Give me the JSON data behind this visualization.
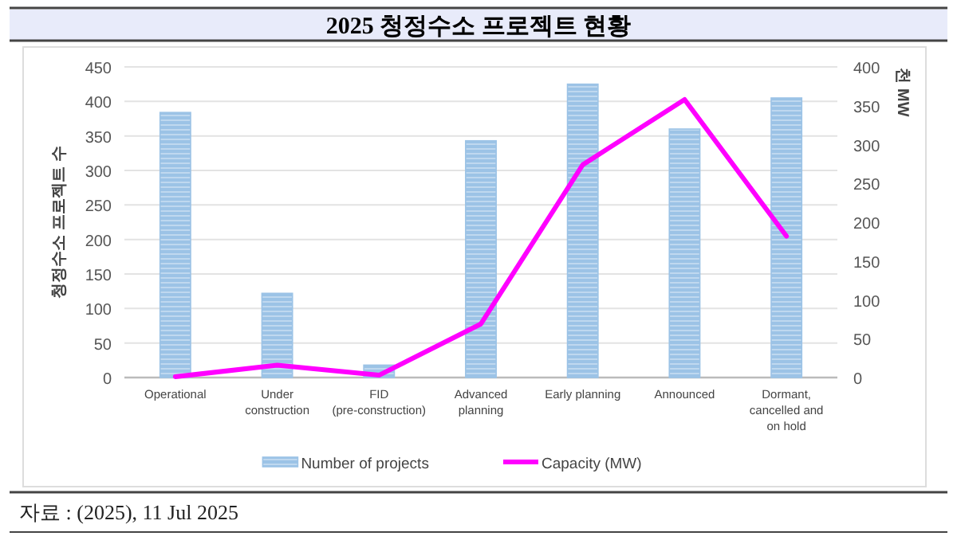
{
  "chart_data": {
    "type": "bar",
    "title": "2025 청정수소 프로젝트 현황",
    "categories": [
      "Operational",
      "Under construction",
      "FID (pre-construction)",
      "Advanced planning",
      "Early planning",
      "Announced",
      "Dormant, cancelled and on hold"
    ],
    "series": [
      {
        "name": "Number of projects",
        "color": "#9cc3e6",
        "values": [
          384,
          122,
          18,
          343,
          425,
          360,
          405
        ]
      },
      {
        "name": "Capacity (MW)",
        "type": "line",
        "axis": "y2",
        "color": "#ff00ff",
        "values": [
          1,
          16,
          3,
          69,
          274,
          358,
          182
        ]
      }
    ],
    "ylabel": "청정수소 프로젝트 수",
    "y2label": "천 MW",
    "ylim": [
      0,
      450
    ],
    "yticks": [
      0,
      50,
      100,
      150,
      200,
      250,
      300,
      350,
      400,
      450
    ],
    "y2lim": [
      0,
      400
    ],
    "y2ticks": [
      0,
      50,
      100,
      150,
      200,
      250,
      300,
      350,
      400
    ],
    "grid": "y",
    "legend": "bottom",
    "annotations": [
      "자료 : (2025), 11 Jul 2025"
    ]
  }
}
